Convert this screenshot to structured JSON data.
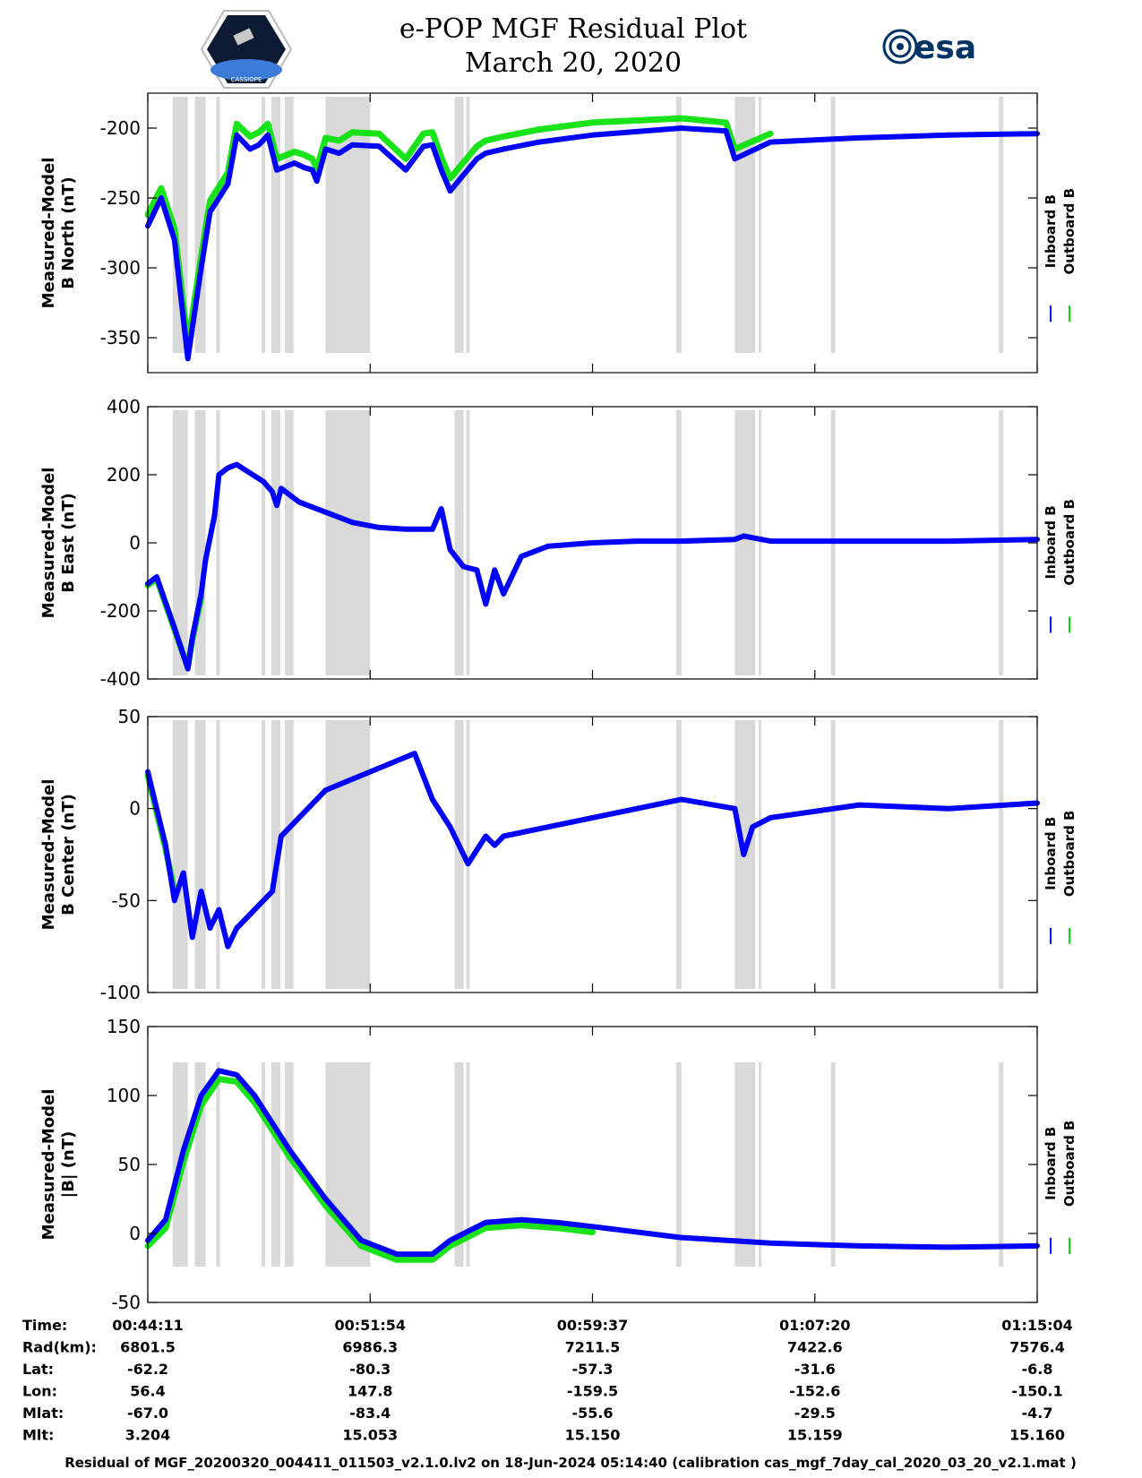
{
  "title": "e-POP MGF Residual Plot",
  "subtitle": "March 20, 2020",
  "logo_right_text": "esa",
  "logo_left_text": "CASSIOPE",
  "colors": {
    "inboard": "#0000ff",
    "outboard": "#00e000",
    "gap": "#d9d9d9"
  },
  "chart_data": [
    {
      "type": "line",
      "ylabel_line1": "Measured-Model",
      "ylabel_line2": "B North (nT)",
      "ylim": [
        -375,
        -175
      ],
      "yticks": [
        -350,
        -300,
        -250,
        -200
      ],
      "ytick_labels": [
        "-350",
        "-300",
        "-250",
        "-200"
      ],
      "series": [
        {
          "name": "Inboard B",
          "x": [
            0,
            0.015,
            0.03,
            0.045,
            0.06,
            0.07,
            0.09,
            0.1,
            0.115,
            0.125,
            0.135,
            0.145,
            0.165,
            0.175,
            0.185,
            0.19,
            0.2,
            0.215,
            0.23,
            0.26,
            0.29,
            0.31,
            0.32,
            0.33,
            0.34,
            0.37,
            0.38,
            0.4,
            0.44,
            0.5,
            0.6,
            0.65,
            0.66,
            0.7,
            0.8,
            0.9,
            1.0
          ],
          "values": [
            -270,
            -250,
            -280,
            -365,
            -300,
            -260,
            -240,
            -205,
            -215,
            -212,
            -205,
            -230,
            -225,
            -228,
            -230,
            -238,
            -215,
            -218,
            -212,
            -213,
            -230,
            -213,
            -212,
            -230,
            -245,
            -222,
            -218,
            -215,
            -210,
            -205,
            -200,
            -202,
            -222,
            -210,
            -207,
            -205,
            -204
          ]
        },
        {
          "name": "Outboard B",
          "x": [
            0,
            0.015,
            0.03,
            0.045,
            0.06,
            0.07,
            0.09,
            0.1,
            0.115,
            0.125,
            0.135,
            0.145,
            0.165,
            0.175,
            0.185,
            0.19,
            0.2,
            0.215,
            0.23,
            0.26,
            0.29,
            0.31,
            0.32,
            0.33,
            0.34,
            0.37,
            0.38,
            0.4,
            0.44,
            0.5,
            0.6,
            0.65,
            0.66,
            0.7
          ],
          "values": [
            -262,
            -243,
            -272,
            -355,
            -292,
            -252,
            -232,
            -197,
            -206,
            -203,
            -197,
            -222,
            -217,
            -219,
            -222,
            -229,
            -207,
            -209,
            -203,
            -204,
            -222,
            -204,
            -203,
            -221,
            -236,
            -213,
            -209,
            -206,
            -201,
            -196,
            -193,
            -196,
            -215,
            -204
          ]
        }
      ]
    },
    {
      "type": "line",
      "ylabel_line1": "Measured-Model",
      "ylabel_line2": "B East (nT)",
      "ylim": [
        -400,
        400
      ],
      "yticks": [
        -400,
        -200,
        0,
        200,
        400
      ],
      "ytick_labels": [
        "-400",
        "-200",
        "0",
        "200",
        "400"
      ],
      "series": [
        {
          "name": "Inboard B",
          "x": [
            0,
            0.01,
            0.03,
            0.045,
            0.05,
            0.06,
            0.065,
            0.075,
            0.08,
            0.09,
            0.1,
            0.13,
            0.14,
            0.145,
            0.15,
            0.17,
            0.2,
            0.23,
            0.26,
            0.29,
            0.32,
            0.33,
            0.34,
            0.355,
            0.37,
            0.38,
            0.39,
            0.4,
            0.42,
            0.45,
            0.5,
            0.55,
            0.6,
            0.66,
            0.67,
            0.7,
            0.8,
            0.9,
            1.0
          ],
          "values": [
            -120,
            -100,
            -250,
            -370,
            -280,
            -150,
            -50,
            80,
            200,
            220,
            230,
            180,
            150,
            110,
            160,
            120,
            90,
            60,
            45,
            40,
            40,
            100,
            -20,
            -70,
            -80,
            -180,
            -80,
            -150,
            -40,
            -10,
            0,
            5,
            5,
            10,
            20,
            5,
            5,
            5,
            10
          ]
        },
        {
          "name": "Outboard B",
          "x": [
            0,
            0.01,
            0.03,
            0.045,
            0.05,
            0.06
          ],
          "values": [
            -125,
            -105,
            -255,
            -365,
            -285,
            -160
          ]
        }
      ]
    },
    {
      "type": "line",
      "ylabel_line1": "Measured-Model",
      "ylabel_line2": "B Center (nT)",
      "ylim": [
        -100,
        50
      ],
      "yticks": [
        -100,
        -50,
        0,
        50
      ],
      "ytick_labels": [
        "-100",
        "-50",
        "0",
        "50"
      ],
      "series": [
        {
          "name": "Inboard B",
          "x": [
            0,
            0.01,
            0.02,
            0.03,
            0.04,
            0.05,
            0.06,
            0.07,
            0.08,
            0.09,
            0.1,
            0.12,
            0.14,
            0.15,
            0.16,
            0.2,
            0.25,
            0.3,
            0.32,
            0.34,
            0.36,
            0.38,
            0.39,
            0.4,
            0.45,
            0.5,
            0.55,
            0.6,
            0.66,
            0.67,
            0.68,
            0.7,
            0.8,
            0.9,
            1.0
          ],
          "values": [
            20,
            0,
            -20,
            -50,
            -35,
            -70,
            -45,
            -65,
            -55,
            -75,
            -65,
            -55,
            -45,
            -15,
            -10,
            10,
            20,
            30,
            5,
            -10,
            -30,
            -15,
            -20,
            -15,
            -10,
            -5,
            0,
            5,
            0,
            -25,
            -10,
            -5,
            2,
            0,
            3
          ]
        },
        {
          "name": "Outboard B",
          "x": [
            0,
            0.01,
            0.02,
            0.03
          ],
          "values": [
            18,
            -2,
            -22,
            -45
          ]
        }
      ]
    },
    {
      "type": "line",
      "ylabel_line1": "Measured-Model",
      "ylabel_line2": "|B| (nT)",
      "ylim": [
        -50,
        150
      ],
      "yticks": [
        -50,
        0,
        50,
        100,
        150
      ],
      "ytick_labels": [
        "-50",
        "0",
        "50",
        "100",
        "150"
      ],
      "series": [
        {
          "name": "Inboard B",
          "x": [
            0,
            0.02,
            0.04,
            0.06,
            0.08,
            0.1,
            0.12,
            0.16,
            0.2,
            0.24,
            0.28,
            0.32,
            0.34,
            0.38,
            0.42,
            0.46,
            0.5,
            0.6,
            0.7,
            0.8,
            0.9,
            1.0
          ],
          "values": [
            -5,
            10,
            60,
            100,
            118,
            115,
            100,
            60,
            25,
            -5,
            -15,
            -15,
            -5,
            8,
            10,
            8,
            5,
            -3,
            -7,
            -9,
            -10,
            -9
          ]
        },
        {
          "name": "Outboard B",
          "x": [
            0,
            0.02,
            0.04,
            0.06,
            0.08,
            0.1,
            0.12,
            0.16,
            0.2,
            0.24,
            0.28,
            0.32,
            0.34,
            0.38,
            0.42,
            0.46,
            0.5
          ],
          "values": [
            -9,
            4,
            52,
            93,
            112,
            110,
            95,
            55,
            20,
            -9,
            -19,
            -19,
            -9,
            4,
            6,
            4,
            1
          ]
        }
      ]
    }
  ],
  "legend": {
    "inboard": "Inboard B",
    "outboard": "Outboard B"
  },
  "gaps": [
    {
      "start": 0.028,
      "end": 0.045
    },
    {
      "start": 0.053,
      "end": 0.065
    },
    {
      "start": 0.077,
      "end": 0.081
    },
    {
      "start": 0.128,
      "end": 0.132
    },
    {
      "start": 0.139,
      "end": 0.149
    },
    {
      "start": 0.154,
      "end": 0.164
    },
    {
      "start": 0.2,
      "end": 0.204
    },
    {
      "start": 0.2,
      "end": 0.25
    },
    {
      "start": 0.345,
      "end": 0.355
    },
    {
      "start": 0.358,
      "end": 0.362
    },
    {
      "start": 0.594,
      "end": 0.6
    },
    {
      "start": 0.66,
      "end": 0.683
    },
    {
      "start": 0.687,
      "end": 0.69
    },
    {
      "start": 0.768,
      "end": 0.773
    },
    {
      "start": 0.957,
      "end": 0.962
    }
  ],
  "table": {
    "labels": [
      "Time:",
      "Rad(km):",
      "Lat:",
      "Lon:",
      "Mlat:",
      "Mlt:"
    ],
    "columns": [
      [
        "00:44:11",
        "6801.5",
        "-62.2",
        "56.4",
        "-67.0",
        "3.204"
      ],
      [
        "00:51:54",
        "6986.3",
        "-80.3",
        "147.8",
        "-83.4",
        "15.053"
      ],
      [
        "00:59:37",
        "7211.5",
        "-57.3",
        "-159.5",
        "-55.6",
        "15.150"
      ],
      [
        "01:07:20",
        "7422.6",
        "-31.6",
        "-152.6",
        "-29.5",
        "15.159"
      ],
      [
        "01:15:04",
        "7576.4",
        "-6.8",
        "-150.1",
        "-4.7",
        "15.160"
      ]
    ]
  },
  "footer": "Residual of MGF_20200320_004411_011503_v2.1.0.lv2 on 18-Jun-2024 05:14:40 (calibration cas_mgf_7day_cal_2020_03_20_v2.1.mat )"
}
